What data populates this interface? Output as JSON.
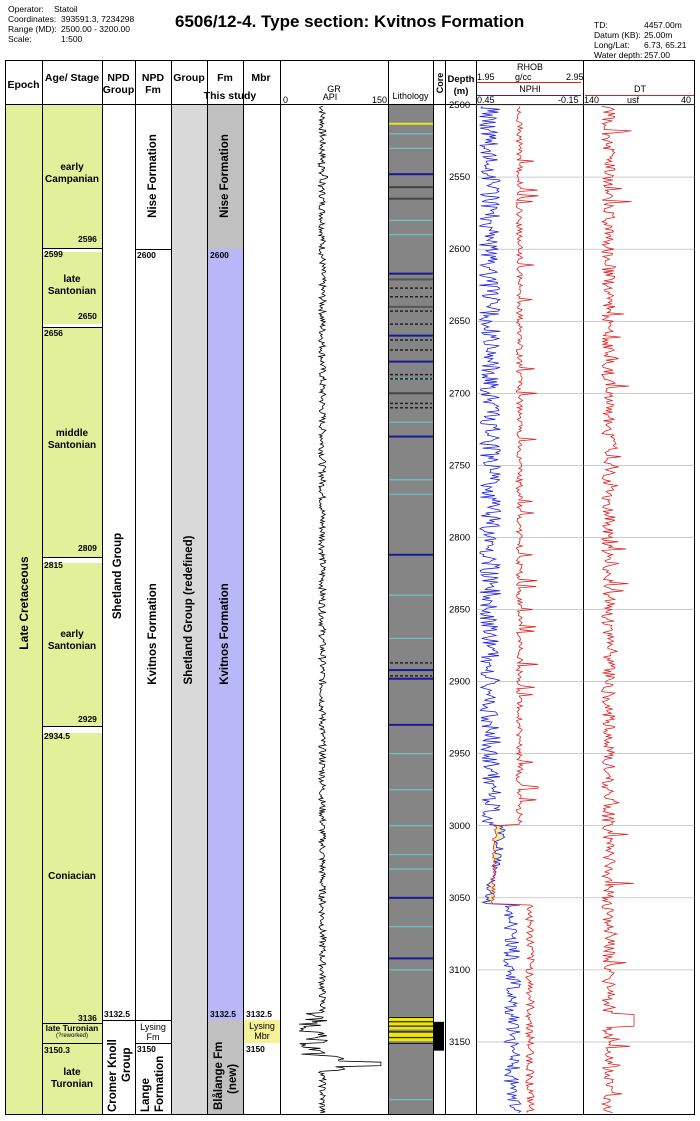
{
  "header": {
    "operator_label": "Operator:",
    "operator": "Statoil",
    "coordinates_label": "Coordinates:",
    "coordinates": "393591.3, 7234298",
    "range_label": "Range (MD):",
    "range": "2500.00 - 3200.00",
    "scale_label": "Scale:",
    "scale": "1:500",
    "title": "6506/12-4. Type section: Kvitnos Formation",
    "td_label": "TD:",
    "td": "4457.00m",
    "datum_label": "Datum (KB):",
    "datum": "25.00m",
    "longlat_label": "Long/Lat:",
    "longlat": "6.73, 65.21",
    "waterdepth_label": "Water depth:",
    "waterdepth": "257.00"
  },
  "columns": {
    "epoch": "Epoch",
    "age_stage": "Age/ Stage",
    "npd_group": "NPD Group",
    "npd_fm": "NPD Fm",
    "group": "Group",
    "fm": "Fm",
    "mbr": "Mbr",
    "this_study": "This study",
    "gr": "GR",
    "gr_unit": "API",
    "gr_min": "0",
    "gr_max": "150",
    "lithology": "Lithology",
    "core": "Core",
    "depth": "Depth (m)",
    "rhob": "RHOB",
    "rhob_unit": "g/cc",
    "rhob_min": "1.95",
    "rhob_max": "2.95",
    "nphi": "NPHI",
    "nphi_min": "0.45",
    "nphi_max": "-0.15",
    "dt": "DT",
    "dt_unit": "usf",
    "dt_min": "140",
    "dt_max": "40"
  },
  "epoch": {
    "name": "Late Cretaceous",
    "color": "#e3f09a"
  },
  "stages": [
    {
      "name": "early Campanian",
      "top_label": "",
      "base_label": "2596"
    },
    {
      "name": "late Santonian",
      "top_label": "2599",
      "base_label": "2650"
    },
    {
      "name": "middle Santonian",
      "top_label": "2656",
      "base_label": "2809"
    },
    {
      "name": "early Santonian",
      "top_label": "2815",
      "base_label": "2929"
    },
    {
      "name": "Coniacian",
      "top_label": "2934.5",
      "base_label": "3136"
    },
    {
      "name": "late Turonian",
      "note": "(?reworked)",
      "top_label": "",
      "base_label": ""
    },
    {
      "name": "late Turonian",
      "top_label": "3150.3",
      "base_label": ""
    }
  ],
  "npd_group": {
    "upper": "Shetland Group",
    "lower": "Cromer Knoll Group",
    "boundary_label": "3132.5"
  },
  "npd_fm": {
    "upper": "Nise Formation",
    "middle": "Kvitnos Formation",
    "lysing": "Lysing Fm",
    "lower": "Lange Formation",
    "label_2600": "2600",
    "label_3150": "3150"
  },
  "group": {
    "name": "Shetland Group (redefined)",
    "color": "#d9d9d9"
  },
  "fm": {
    "upper": "Nise Formation",
    "upper_color": "#c0c0c0",
    "middle": "Kvitnos Formation",
    "middle_color": "#b8b8f8",
    "lower": "Blålange Fm (new)",
    "lower_color": "#c0c0c0",
    "label_2600": "2600",
    "label_3132": "3132.5"
  },
  "mbr": {
    "lysing": "Lysing Mbr",
    "lysing_color": "#f6f298",
    "label_3132": "3132.5",
    "label_3150": "3150"
  },
  "depth_ticks": [
    "2500",
    "2550",
    "2600",
    "2650",
    "2700",
    "2750",
    "2800",
    "2850",
    "2900",
    "2950",
    "3000",
    "3050",
    "3100",
    "3150"
  ],
  "colors": {
    "lithology": "#858585",
    "rhob": "#e02020",
    "nphi": "#2020e0",
    "crossover": "#f5f0a0",
    "dt": "#e02020",
    "gr": "#000000"
  }
}
